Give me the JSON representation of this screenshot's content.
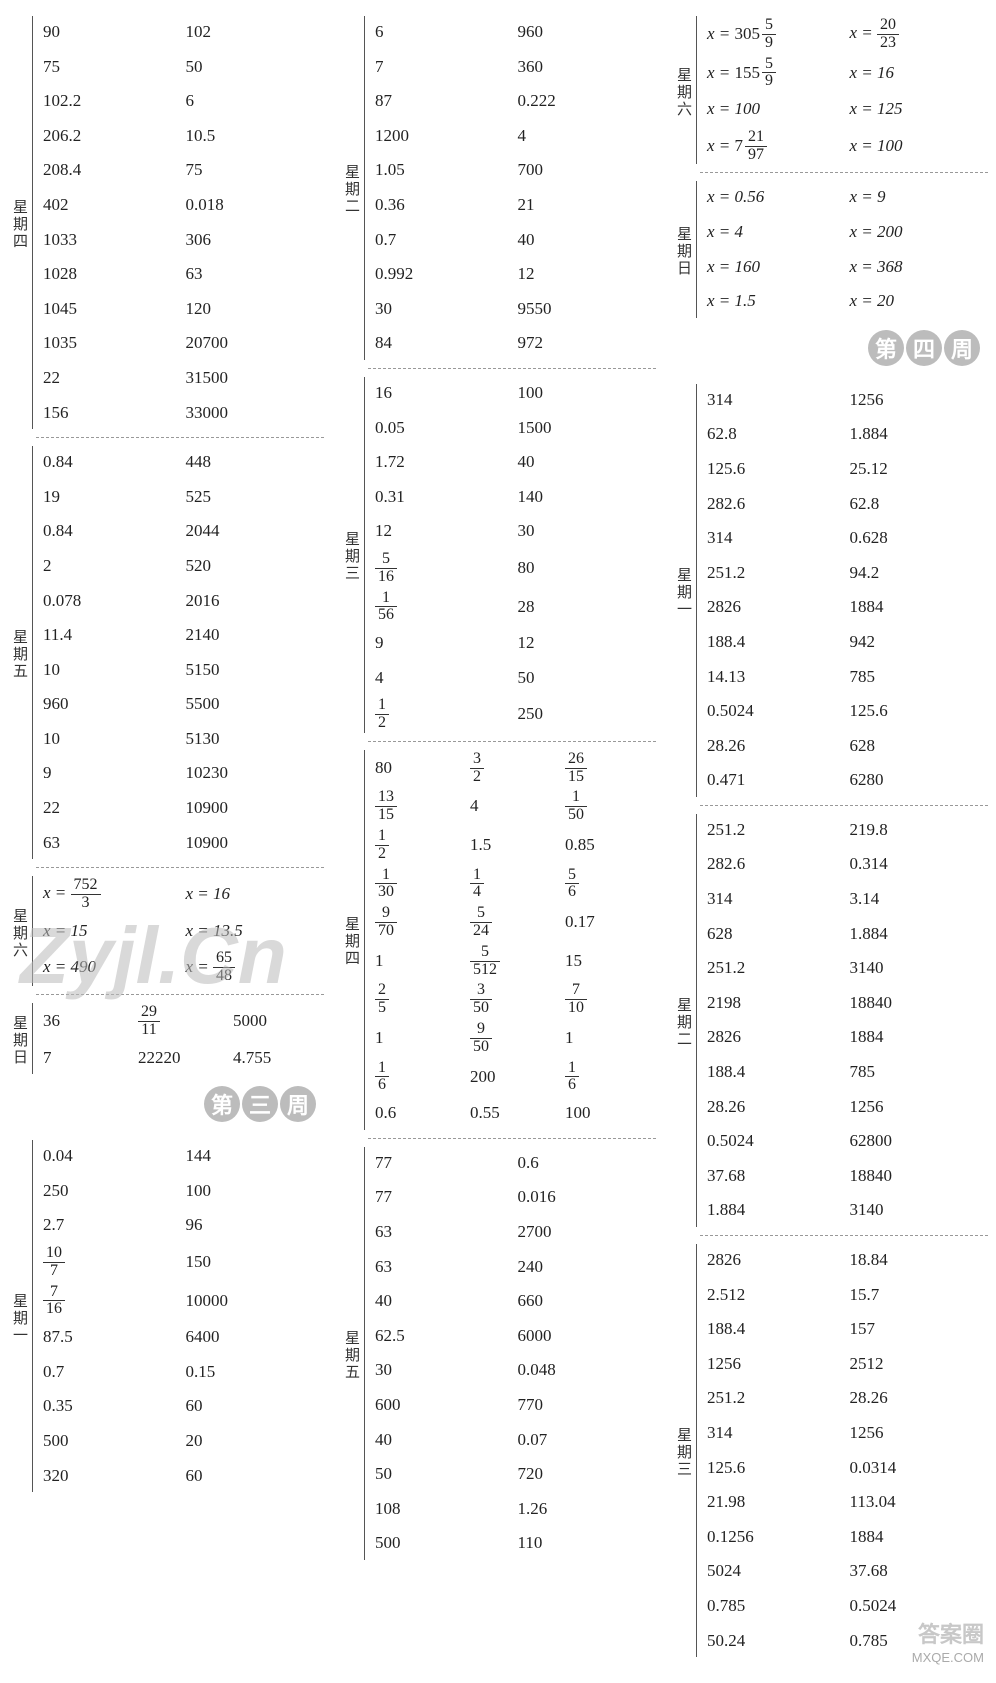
{
  "watermarks": {
    "main": "Zyjl.Cn",
    "corner1": "答案圈",
    "corner2": "MXQE.COM"
  },
  "week3_label": "第三周",
  "week4_label": "第四周",
  "col1": {
    "thu": {
      "label": "星期四",
      "cols": 2,
      "cells": [
        [
          "90",
          "102"
        ],
        [
          "75",
          "50"
        ],
        [
          "102.2",
          "6"
        ],
        [
          "206.2",
          "10.5"
        ],
        [
          "208.4",
          "75"
        ],
        [
          "402",
          "0.018"
        ],
        [
          "1033",
          "306"
        ],
        [
          "1028",
          "63"
        ],
        [
          "1045",
          "120"
        ],
        [
          "1035",
          "20700"
        ],
        [
          "22",
          "31500"
        ],
        [
          "156",
          "33000"
        ]
      ]
    },
    "fri": {
      "label": "星期五",
      "cols": 2,
      "cells": [
        [
          "0.84",
          "448"
        ],
        [
          "19",
          "525"
        ],
        [
          "0.84",
          "2044"
        ],
        [
          "2",
          "520"
        ],
        [
          "0.078",
          "2016"
        ],
        [
          "11.4",
          "2140"
        ],
        [
          "10",
          "5150"
        ],
        [
          "960",
          "5500"
        ],
        [
          "10",
          "5130"
        ],
        [
          "9",
          "10230"
        ],
        [
          "22",
          "10900"
        ],
        [
          "63",
          "10900"
        ]
      ]
    },
    "sat": {
      "label": "星期六",
      "cols": 2,
      "cells": [
        [
          {
            "eq": "x =",
            "frac": [
              "752",
              "3"
            ]
          },
          {
            "eq": "x = 16"
          }
        ],
        [
          {
            "eq": "x = 15"
          },
          {
            "eq": "x = 13.5"
          }
        ],
        [
          {
            "eq": "x = 490"
          },
          {
            "eq": "x =",
            "frac": [
              "65",
              "48"
            ]
          }
        ]
      ]
    },
    "sun": {
      "label": "星期日",
      "cols": 3,
      "cells": [
        [
          "36",
          {
            "frac": [
              "29",
              "11"
            ]
          },
          "5000"
        ],
        [
          "7",
          "22220",
          "4.755"
        ]
      ]
    },
    "w3mon": {
      "label": "星期一",
      "cols": 2,
      "cells": [
        [
          "0.04",
          "144"
        ],
        [
          "250",
          "100"
        ],
        [
          "2.7",
          "96"
        ],
        [
          {
            "frac": [
              "10",
              "7"
            ]
          },
          "150"
        ],
        [
          {
            "frac": [
              "7",
              "16"
            ]
          },
          "10000"
        ],
        [
          "87.5",
          "6400"
        ],
        [
          "0.7",
          "0.15"
        ],
        [
          "0.35",
          "60"
        ],
        [
          "500",
          "20"
        ],
        [
          "320",
          "60"
        ]
      ]
    }
  },
  "col2": {
    "tue": {
      "label": "星期二",
      "cols": 2,
      "cells": [
        [
          "6",
          "960"
        ],
        [
          "7",
          "360"
        ],
        [
          "87",
          "0.222"
        ],
        [
          "1200",
          "4"
        ],
        [
          "1.05",
          "700"
        ],
        [
          "0.36",
          "21"
        ],
        [
          "0.7",
          "40"
        ],
        [
          "0.992",
          "12"
        ],
        [
          "30",
          "9550"
        ],
        [
          "84",
          "972"
        ]
      ]
    },
    "wed": {
      "label": "星期三",
      "cols": 2,
      "cells": [
        [
          "16",
          "100"
        ],
        [
          "0.05",
          "1500"
        ],
        [
          "1.72",
          "40"
        ],
        [
          "0.31",
          "140"
        ],
        [
          "12",
          "30"
        ],
        [
          {
            "frac": [
              "5",
              "16"
            ]
          },
          "80"
        ],
        [
          {
            "frac": [
              "1",
              "56"
            ]
          },
          "28"
        ],
        [
          "9",
          "12"
        ],
        [
          "4",
          "50"
        ],
        [
          {
            "frac": [
              "1",
              "2"
            ]
          },
          "250"
        ]
      ]
    },
    "thu": {
      "label": "星期四",
      "cols": 3,
      "cells": [
        [
          "80",
          {
            "frac": [
              "3",
              "2"
            ]
          },
          {
            "frac": [
              "26",
              "15"
            ]
          }
        ],
        [
          {
            "frac": [
              "13",
              "15"
            ]
          },
          "4",
          {
            "frac": [
              "1",
              "50"
            ]
          }
        ],
        [
          {
            "frac": [
              "1",
              "2"
            ]
          },
          "1.5",
          "0.85"
        ],
        [
          {
            "frac": [
              "1",
              "30"
            ]
          },
          {
            "frac": [
              "1",
              "4"
            ]
          },
          {
            "frac": [
              "5",
              "6"
            ]
          }
        ],
        [
          {
            "frac": [
              "9",
              "70"
            ]
          },
          {
            "frac": [
              "5",
              "24"
            ]
          },
          "0.17"
        ],
        [
          "1",
          {
            "frac": [
              "5",
              "512"
            ]
          },
          "15"
        ],
        [
          {
            "frac": [
              "2",
              "5"
            ]
          },
          {
            "frac": [
              "3",
              "50"
            ]
          },
          {
            "frac": [
              "7",
              "10"
            ]
          }
        ],
        [
          "1",
          {
            "frac": [
              "9",
              "50"
            ]
          },
          "1"
        ],
        [
          {
            "frac": [
              "1",
              "6"
            ]
          },
          "200",
          {
            "frac": [
              "1",
              "6"
            ]
          }
        ],
        [
          "0.6",
          "0.55",
          "100"
        ]
      ]
    },
    "fri": {
      "label": "星期五",
      "cols": 2,
      "cells": [
        [
          "77",
          "0.6"
        ],
        [
          "77",
          "0.016"
        ],
        [
          "63",
          "2700"
        ],
        [
          "63",
          "240"
        ],
        [
          "40",
          "660"
        ],
        [
          "62.5",
          "6000"
        ],
        [
          "30",
          "0.048"
        ],
        [
          "600",
          "770"
        ],
        [
          "40",
          "0.07"
        ],
        [
          "50",
          "720"
        ],
        [
          "108",
          "1.26"
        ],
        [
          "500",
          "110"
        ]
      ]
    }
  },
  "col3": {
    "sat": {
      "label": "星期六",
      "cols": 2,
      "cells": [
        [
          {
            "eq": "x =",
            "mixed": [
              "305",
              "5",
              "9"
            ]
          },
          {
            "eq": "x =",
            "frac": [
              "20",
              "23"
            ]
          }
        ],
        [
          {
            "eq": "x =",
            "mixed": [
              "155",
              "5",
              "9"
            ]
          },
          {
            "eq": "x = 16"
          }
        ],
        [
          {
            "eq": "x = 100"
          },
          {
            "eq": "x = 125"
          }
        ],
        [
          {
            "eq": "x =",
            "mixed": [
              "7",
              "21",
              "97"
            ]
          },
          {
            "eq": "x = 100"
          }
        ]
      ]
    },
    "sun": {
      "label": "星期日",
      "cols": 2,
      "cells": [
        [
          {
            "eq": "x = 0.56"
          },
          {
            "eq": "x = 9"
          }
        ],
        [
          {
            "eq": "x = 4"
          },
          {
            "eq": "x = 200"
          }
        ],
        [
          {
            "eq": "x = 160"
          },
          {
            "eq": "x = 368"
          }
        ],
        [
          {
            "eq": "x = 1.5"
          },
          {
            "eq": "x = 20"
          }
        ]
      ]
    },
    "w4mon": {
      "label": "星期一",
      "cols": 2,
      "cells": [
        [
          "314",
          "1256"
        ],
        [
          "62.8",
          "1.884"
        ],
        [
          "125.6",
          "25.12"
        ],
        [
          "282.6",
          "62.8"
        ],
        [
          "314",
          "0.628"
        ],
        [
          "251.2",
          "94.2"
        ],
        [
          "2826",
          "1884"
        ],
        [
          "188.4",
          "942"
        ],
        [
          "14.13",
          "785"
        ],
        [
          "0.5024",
          "125.6"
        ],
        [
          "28.26",
          "628"
        ],
        [
          "0.471",
          "6280"
        ]
      ]
    },
    "w4tue": {
      "label": "星期二",
      "cols": 2,
      "cells": [
        [
          "251.2",
          "219.8"
        ],
        [
          "282.6",
          "0.314"
        ],
        [
          "314",
          "3.14"
        ],
        [
          "628",
          "1.884"
        ],
        [
          "251.2",
          "3140"
        ],
        [
          "2198",
          "18840"
        ],
        [
          "2826",
          "1884"
        ],
        [
          "188.4",
          "785"
        ],
        [
          "28.26",
          "1256"
        ],
        [
          "0.5024",
          "62800"
        ],
        [
          "37.68",
          "18840"
        ],
        [
          "1.884",
          "3140"
        ]
      ]
    },
    "w4wed": {
      "label": "星期三",
      "cols": 2,
      "cells": [
        [
          "2826",
          "18.84"
        ],
        [
          "2.512",
          "15.7"
        ],
        [
          "188.4",
          "157"
        ],
        [
          "1256",
          "2512"
        ],
        [
          "251.2",
          "28.26"
        ],
        [
          "314",
          "1256"
        ],
        [
          "125.6",
          "0.0314"
        ],
        [
          "21.98",
          "113.04"
        ],
        [
          "0.1256",
          "1884"
        ],
        [
          "5024",
          "37.68"
        ],
        [
          "0.785",
          "0.5024"
        ],
        [
          "50.24",
          "0.785"
        ]
      ]
    }
  }
}
